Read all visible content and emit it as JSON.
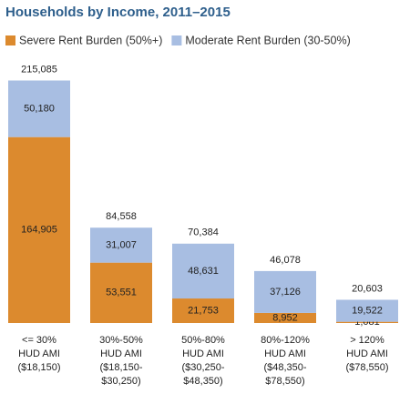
{
  "chart_data": {
    "type": "stacked-bar",
    "title": "Households by Income, 2011–2015",
    "categories": [
      [
        "<= 30%",
        "HUD AMI",
        "($18,150)"
      ],
      [
        "30%-50%",
        "HUD AMI",
        "($18,150-",
        "$30,250)"
      ],
      [
        "50%-80%",
        "HUD AMI",
        "($30,250-",
        "$48,350)"
      ],
      [
        "80%-120%",
        "HUD AMI",
        "($48,350-",
        "$78,550)"
      ],
      [
        "> 120%",
        "HUD AMI",
        "($78,550)"
      ]
    ],
    "series": [
      {
        "name": "Severe Rent Burden (50%+)",
        "color": "#dc8a2e",
        "values": [
          164905,
          53551,
          21753,
          8952,
          1081
        ],
        "value_labels": [
          "164,905",
          "53,551",
          "21,753",
          "8,952",
          "1,081"
        ]
      },
      {
        "name": "Moderate Rent Burden (30-50%)",
        "color": "#a8bee2",
        "values": [
          50180,
          31007,
          48631,
          37126,
          19522
        ],
        "value_labels": [
          "50,180",
          "31,007",
          "48,631",
          "37,126",
          "19,522"
        ]
      }
    ],
    "totals": {
      "values": [
        215085,
        84558,
        70384,
        46078,
        20603
      ],
      "value_labels": [
        "215,085",
        "84,558",
        "70,384",
        "46,078",
        "20,603"
      ]
    },
    "ylim": [
      0,
      230000
    ]
  }
}
